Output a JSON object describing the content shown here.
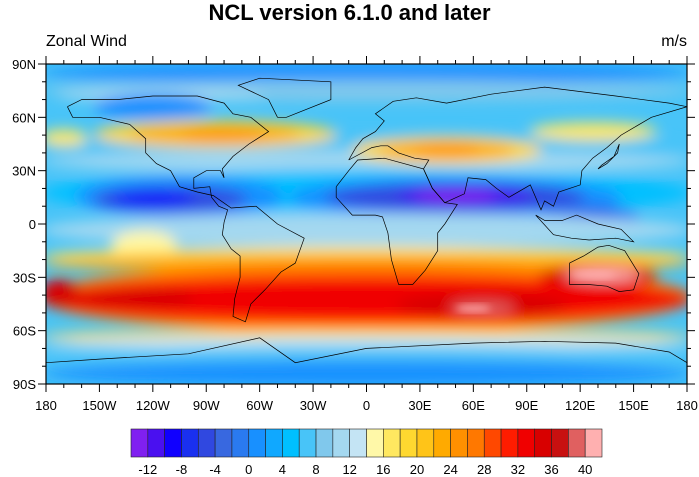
{
  "title": "NCL version 6.1.0 and later",
  "left_string": "Zonal Wind",
  "right_string": "m/s",
  "lat_labels": [
    "90N",
    "60N",
    "30N",
    "0",
    "30S",
    "60S",
    "90S"
  ],
  "lon_labels": [
    "180",
    "150W",
    "120W",
    "90W",
    "60W",
    "30W",
    "0",
    "30E",
    "60E",
    "90E",
    "120E",
    "150E",
    "180"
  ],
  "colorbar": {
    "labels": [
      "-12",
      "-8",
      "-4",
      "0",
      "4",
      "8",
      "12",
      "16",
      "20",
      "24",
      "28",
      "32",
      "36",
      "40"
    ],
    "colors": [
      "#8020f0",
      "#4a10f0",
      "#1000ff",
      "#1a30f0",
      "#3048e0",
      "#3868e0",
      "#2a7af0",
      "#1890ff",
      "#10a8ff",
      "#00c0ff",
      "#48c4f8",
      "#80c8ec",
      "#a4d8f0",
      "#c4e4f4",
      "#fff8a8",
      "#ffe860",
      "#ffd830",
      "#ffc418",
      "#ffaa00",
      "#ff9000",
      "#ff7800",
      "#ff4800",
      "#ff1c00",
      "#f00000",
      "#d80000",
      "#c81010",
      "#e06060",
      "#ffb0b0"
    ]
  },
  "chart_data": {
    "type": "heatmap",
    "title": "NCL version 6.1.0 and later",
    "variable": "Zonal Wind",
    "units": "m/s",
    "contour_levels": [
      -12,
      -10,
      -8,
      -6,
      -4,
      -2,
      0,
      2,
      4,
      6,
      8,
      10,
      12,
      14,
      16,
      18,
      20,
      22,
      24,
      26,
      28,
      30,
      32,
      34,
      36,
      38,
      40
    ],
    "xlim": [
      -180,
      180
    ],
    "ylim": [
      -90,
      90
    ]
  }
}
